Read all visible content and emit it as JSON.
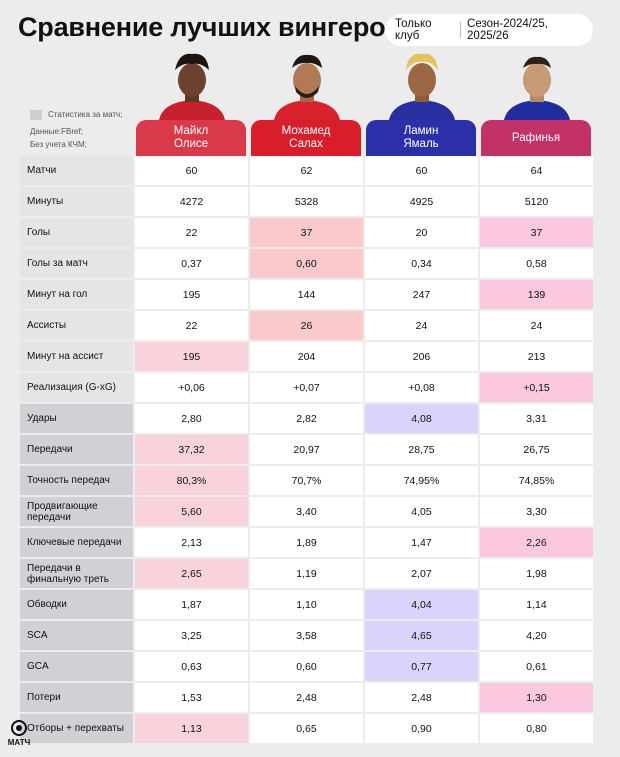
{
  "title": "Сравнение лучших вингеров",
  "filter": {
    "scope": "Только клуб",
    "season": "Сезон-2024/25, 2025/26"
  },
  "legend": {
    "per_match": "Статистика за матч;",
    "source": "Данные:FBref;",
    "note": "Без учета КЧМ;"
  },
  "brand": "МАТЧ",
  "colors": {
    "olise": "#d93a4a",
    "salah": "#d81e2a",
    "yamal": "#2b2fa8",
    "raphinha": "#c23268"
  },
  "players": [
    {
      "name": "Майкл\nОлисе"
    },
    {
      "name": "Мохамед\nСалах"
    },
    {
      "name": "Ламин\nЯмаль"
    },
    {
      "name": "Рафинья"
    }
  ],
  "rows": [
    {
      "label": "Матчи",
      "values": [
        "60",
        "62",
        "60",
        "64"
      ]
    },
    {
      "label": "Минуты",
      "values": [
        "4272",
        "5328",
        "4925",
        "5120"
      ]
    },
    {
      "label": "Голы",
      "values": [
        "22",
        "37",
        "20",
        "37"
      ]
    },
    {
      "label": "Голы за матч",
      "values": [
        "0,37",
        "0,60",
        "0,34",
        "0,58"
      ]
    },
    {
      "label": "Минут на гол",
      "values": [
        "195",
        "144",
        "247",
        "139"
      ]
    },
    {
      "label": "Ассисты",
      "values": [
        "22",
        "26",
        "24",
        "24"
      ]
    },
    {
      "label": "Минут на ассист",
      "values": [
        "195",
        "204",
        "206",
        "213"
      ]
    },
    {
      "label": "Реализация (G-xG)",
      "values": [
        "+0,06",
        "+0,07",
        "+0,08",
        "+0,15"
      ]
    },
    {
      "label": "Удары",
      "values": [
        "2,80",
        "2,82",
        "4,08",
        "3,31"
      ]
    },
    {
      "label": "Передачи",
      "values": [
        "37,32",
        "20,97",
        "28,75",
        "26,75"
      ]
    },
    {
      "label": "Точность передач",
      "values": [
        "80,3%",
        "70,7%",
        "74,95%",
        "74,85%"
      ]
    },
    {
      "label": "Продвигающие передачи",
      "values": [
        "5,60",
        "3,40",
        "4,05",
        "3,30"
      ]
    },
    {
      "label": "Ключевые передачи",
      "values": [
        "2,13",
        "1,89",
        "1,47",
        "2,26"
      ]
    },
    {
      "label": "Передачи в финальную треть",
      "values": [
        "2,65",
        "1,19",
        "2,07",
        "1,98"
      ]
    },
    {
      "label": "Обводки",
      "values": [
        "1,87",
        "1,10",
        "4,04",
        "1,14"
      ]
    },
    {
      "label": "SCA",
      "values": [
        "3,25",
        "3,58",
        "4,65",
        "4,20"
      ]
    },
    {
      "label": "GCA",
      "values": [
        "0,63",
        "0,60",
        "0,77",
        "0,61"
      ]
    },
    {
      "label": "Потери",
      "values": [
        "1,53",
        "2,48",
        "2,48",
        "1,30"
      ]
    },
    {
      "label": "Отборы + перехваты",
      "values": [
        "1,13",
        "0,65",
        "0,90",
        "0,80"
      ]
    }
  ]
}
